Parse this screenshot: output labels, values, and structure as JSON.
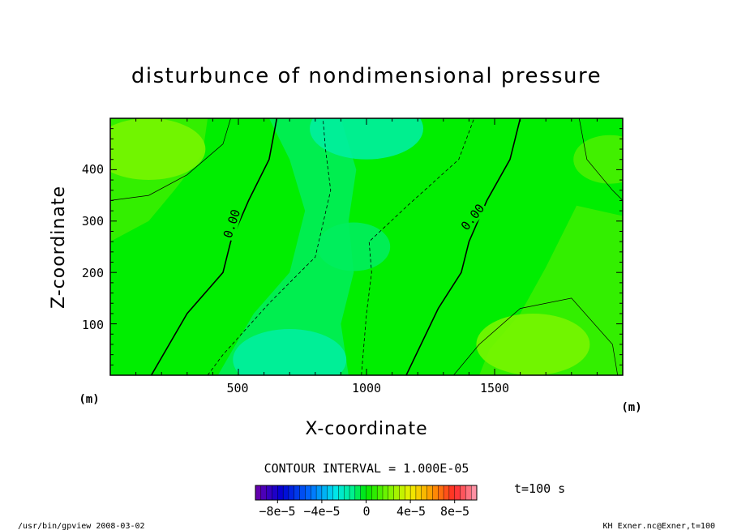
{
  "chart_data": {
    "type": "heatmap",
    "title": "disturbunce of nondimensional pressure",
    "xlabel": "X-coordinate",
    "ylabel": "Z-coordinate",
    "x_unit": "(m)",
    "y_unit": "(m)",
    "xlim": [
      0,
      2000
    ],
    "ylim": [
      0,
      500
    ],
    "x_ticks": [
      500,
      1000,
      1500
    ],
    "y_ticks": [
      100,
      200,
      300,
      400
    ],
    "contour_interval_text": "CONTOUR INTERVAL = 1.000E-05",
    "contour_labels": [
      "0.00",
      "0.00"
    ],
    "colorbar": {
      "min": -0.0001,
      "max": 0.0001,
      "ticks": [
        -8e-05,
        -4e-05,
        0,
        4e-05,
        8e-05
      ],
      "tick_labels": [
        "−8e−5",
        "−4e−5",
        "0",
        "4e−5",
        "8e−5"
      ]
    },
    "time_text": "t=100 s",
    "field_summary": [
      {
        "region": "upper-left corner",
        "x": 150,
        "z": 440,
        "value": 2e-05
      },
      {
        "region": "lower-right corner",
        "x": 1650,
        "z": 60,
        "value": 2e-05
      },
      {
        "region": "upper-right corner",
        "x": 1950,
        "z": 420,
        "value": 1.2e-05
      },
      {
        "region": "top center",
        "x": 1000,
        "z": 480,
        "value": -1.5e-05
      },
      {
        "region": "bottom center-left",
        "x": 700,
        "z": 30,
        "value": -1.5e-05
      },
      {
        "region": "center",
        "x": 950,
        "z": 250,
        "value": -8e-06
      }
    ]
  },
  "footer": {
    "left": "/usr/bin/gpview   2008-03-02",
    "right": "KH_Exner.nc@Exner,t=100"
  }
}
